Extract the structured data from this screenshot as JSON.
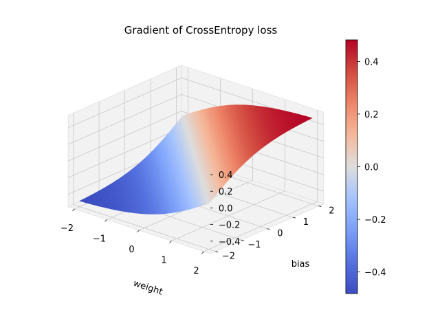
{
  "chart_data": {
    "type": "surface",
    "title": "Gradient of CrossEntropy loss",
    "xlabel": "weight",
    "ylabel": "bias",
    "zlabel": "",
    "xlim": [
      -2.2,
      2.2
    ],
    "ylim": [
      -2.2,
      2.2
    ],
    "zlim": [
      -0.55,
      0.55
    ],
    "xticks": [
      -2,
      -1,
      0,
      1,
      2
    ],
    "yticks": [
      -2,
      -1,
      0,
      1,
      2
    ],
    "zticks": [
      -0.4,
      -0.2,
      0.0,
      0.2,
      0.4
    ],
    "xtick_labels": [
      "−2",
      "−1",
      "0",
      "1",
      "2"
    ],
    "ytick_labels": [
      "−2",
      "−1",
      "0",
      "1",
      "2"
    ],
    "ztick_labels": [
      "−0.4",
      "−0.2",
      "0.0",
      "0.2",
      "0.4"
    ],
    "surface": {
      "function": "sigmoid(weight + bias) - 0.5",
      "weight_range": [
        -2,
        2
      ],
      "bias_range": [
        -2,
        2
      ],
      "z_range": [
        -0.482,
        0.482
      ]
    },
    "grid": true,
    "colormap": "coolwarm",
    "colorbar": {
      "range": [
        -0.482,
        0.482
      ],
      "ticks": [
        -0.4,
        -0.2,
        0.0,
        0.2,
        0.4
      ],
      "tick_labels": [
        "−0.4",
        "−0.2",
        "0.0",
        "0.2",
        "0.4"
      ],
      "low_color": "#3b4cc0",
      "mid_color": "#dddddd",
      "high_color": "#b40426"
    }
  }
}
